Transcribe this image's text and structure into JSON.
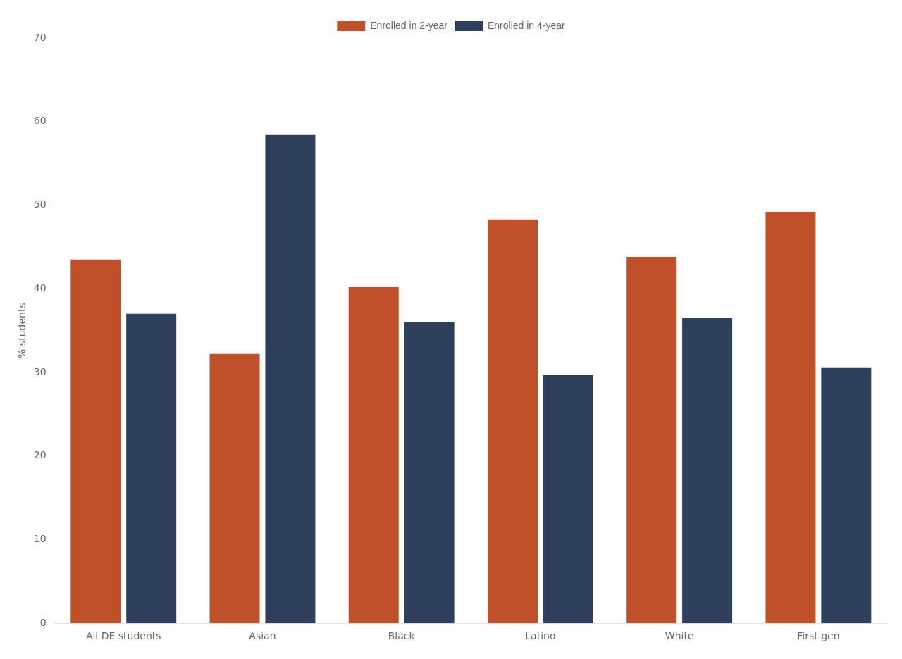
{
  "chart_data": {
    "type": "bar",
    "categories": [
      "All DE students",
      "Asian",
      "Black",
      "Latino",
      "White",
      "First gen"
    ],
    "series": [
      {
        "name": "Enrolled in 2-year",
        "color": "#C0502A",
        "values": [
          43.5,
          32.2,
          40.2,
          48.3,
          43.8,
          49.2
        ]
      },
      {
        "name": "Enrolled in 4-year",
        "color": "#2E3F5C",
        "values": [
          37.0,
          58.4,
          36.0,
          29.7,
          36.5,
          30.6
        ]
      }
    ],
    "ylabel": "% students",
    "ylim": [
      0,
      70
    ],
    "yticks": [
      0,
      10,
      20,
      30,
      40,
      50,
      60,
      70
    ],
    "grid": false,
    "legend": "top"
  }
}
